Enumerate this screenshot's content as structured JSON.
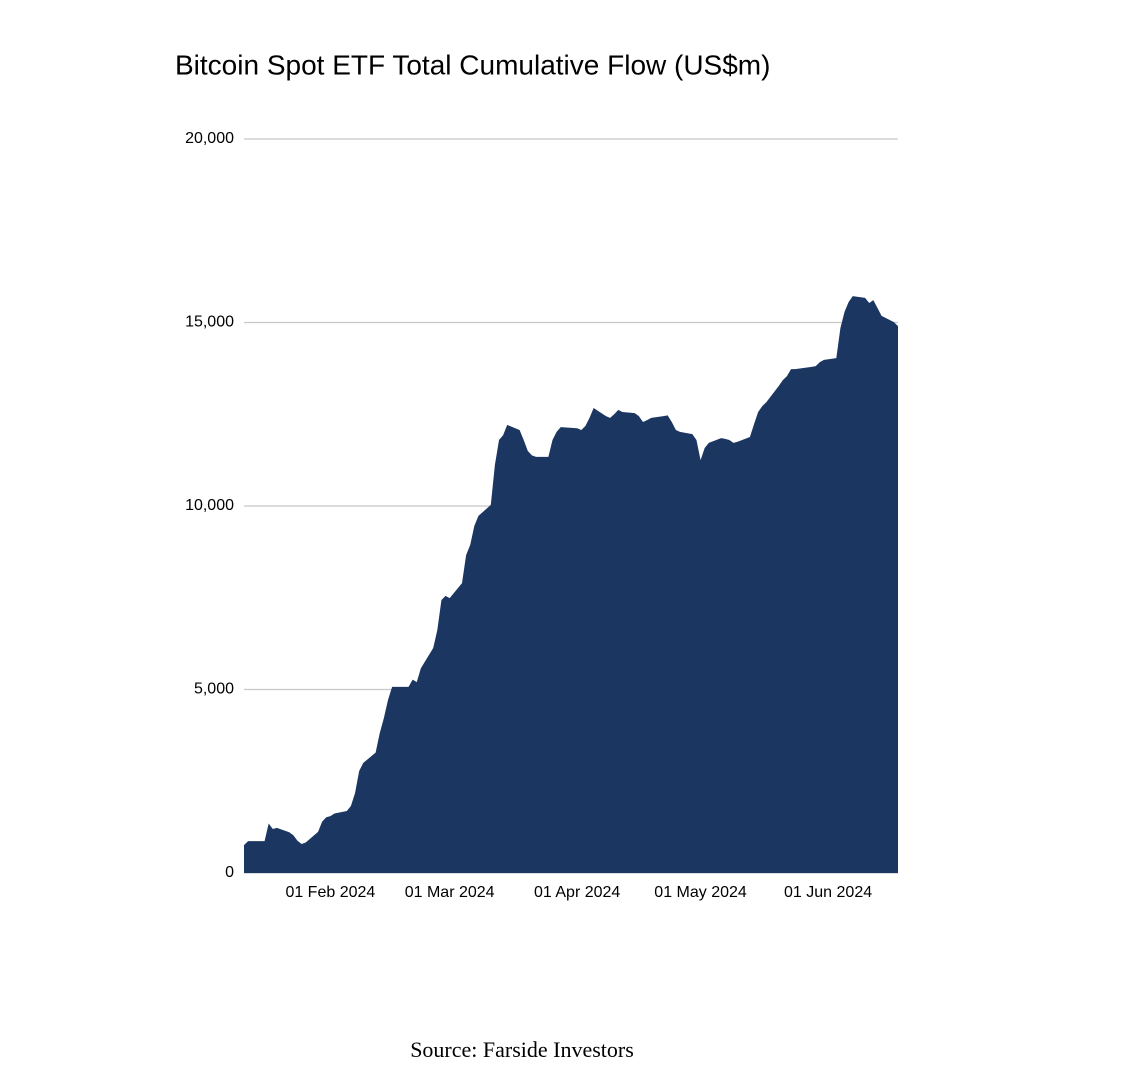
{
  "chart_data": {
    "type": "area",
    "title": "Bitcoin Spot ETF Total Cumulative Flow (US$m)",
    "source": "Source: Farside Investors",
    "color": "#1b3761",
    "grid": true,
    "xlim": [
      "2024-01-11",
      "2024-06-18"
    ],
    "xticks": [
      {
        "value": "2024-02-01",
        "label": "01 Feb 2024"
      },
      {
        "value": "2024-03-01",
        "label": "01 Mar 2024"
      },
      {
        "value": "2024-04-01",
        "label": "01 Apr 2024"
      },
      {
        "value": "2024-05-01",
        "label": "01 May 2024"
      },
      {
        "value": "2024-06-01",
        "label": "01 Jun 2024"
      }
    ],
    "ylim": [
      0,
      20000
    ],
    "yticks": [
      0,
      {
        "value": 5000,
        "label": "5,000"
      },
      {
        "value": 10000,
        "label": "10,000"
      },
      {
        "value": 15000,
        "label": "15,000"
      },
      {
        "value": 20000,
        "label": "20,000"
      }
    ],
    "x": [
      "2024-01-11",
      "2024-01-12",
      "2024-01-16",
      "2024-01-17",
      "2024-01-18",
      "2024-01-19",
      "2024-01-22",
      "2024-01-23",
      "2024-01-24",
      "2024-01-25",
      "2024-01-26",
      "2024-01-29",
      "2024-01-30",
      "2024-01-31",
      "2024-02-01",
      "2024-02-02",
      "2024-02-05",
      "2024-02-06",
      "2024-02-07",
      "2024-02-08",
      "2024-02-09",
      "2024-02-12",
      "2024-02-13",
      "2024-02-14",
      "2024-02-15",
      "2024-02-16",
      "2024-02-20",
      "2024-02-21",
      "2024-02-22",
      "2024-02-23",
      "2024-02-26",
      "2024-02-27",
      "2024-02-28",
      "2024-02-29",
      "2024-03-01",
      "2024-03-04",
      "2024-03-05",
      "2024-03-06",
      "2024-03-07",
      "2024-03-08",
      "2024-03-11",
      "2024-03-12",
      "2024-03-13",
      "2024-03-14",
      "2024-03-15",
      "2024-03-18",
      "2024-03-19",
      "2024-03-20",
      "2024-03-21",
      "2024-03-22",
      "2024-03-25",
      "2024-03-26",
      "2024-03-27",
      "2024-03-28",
      "2024-04-01",
      "2024-04-02",
      "2024-04-03",
      "2024-04-04",
      "2024-04-05",
      "2024-04-08",
      "2024-04-09",
      "2024-04-10",
      "2024-04-11",
      "2024-04-12",
      "2024-04-15",
      "2024-04-16",
      "2024-04-17",
      "2024-04-18",
      "2024-04-19",
      "2024-04-22",
      "2024-04-23",
      "2024-04-24",
      "2024-04-25",
      "2024-04-26",
      "2024-04-29",
      "2024-04-30",
      "2024-05-01",
      "2024-05-02",
      "2024-05-03",
      "2024-05-06",
      "2024-05-07",
      "2024-05-08",
      "2024-05-09",
      "2024-05-10",
      "2024-05-13",
      "2024-05-14",
      "2024-05-15",
      "2024-05-16",
      "2024-05-17",
      "2024-05-20",
      "2024-05-21",
      "2024-05-22",
      "2024-05-23",
      "2024-05-24",
      "2024-05-28",
      "2024-05-29",
      "2024-05-30",
      "2024-05-31",
      "2024-06-03",
      "2024-06-04",
      "2024-06-05",
      "2024-06-06",
      "2024-06-07",
      "2024-06-10",
      "2024-06-11",
      "2024-06-12",
      "2024-06-13",
      "2024-06-14",
      "2024-06-17",
      "2024-06-18"
    ],
    "values": [
      760,
      870,
      870,
      1350,
      1200,
      1230,
      1110,
      1030,
      880,
      790,
      830,
      1120,
      1400,
      1520,
      1550,
      1620,
      1690,
      1830,
      2180,
      2780,
      3000,
      3280,
      3810,
      4220,
      4710,
      5070,
      5070,
      5270,
      5200,
      5580,
      6130,
      6620,
      7440,
      7550,
      7490,
      7900,
      8660,
      8940,
      9460,
      9730,
      10030,
      11120,
      11800,
      11930,
      12210,
      12070,
      11800,
      11500,
      11380,
      11340,
      11340,
      11800,
      12020,
      12150,
      12120,
      12070,
      12180,
      12400,
      12670,
      12450,
      12400,
      12500,
      12620,
      12560,
      12530,
      12450,
      12290,
      12340,
      12400,
      12450,
      12470,
      12290,
      12070,
      12020,
      11960,
      11800,
      11250,
      11580,
      11720,
      11850,
      11830,
      11800,
      11720,
      11750,
      11880,
      12230,
      12560,
      12720,
      12830,
      13270,
      13430,
      13540,
      13730,
      13730,
      13790,
      13810,
      13920,
      13980,
      14030,
      14850,
      15290,
      15560,
      15720,
      15670,
      15530,
      15610,
      15400,
      15180,
      15010,
      14900
    ]
  }
}
